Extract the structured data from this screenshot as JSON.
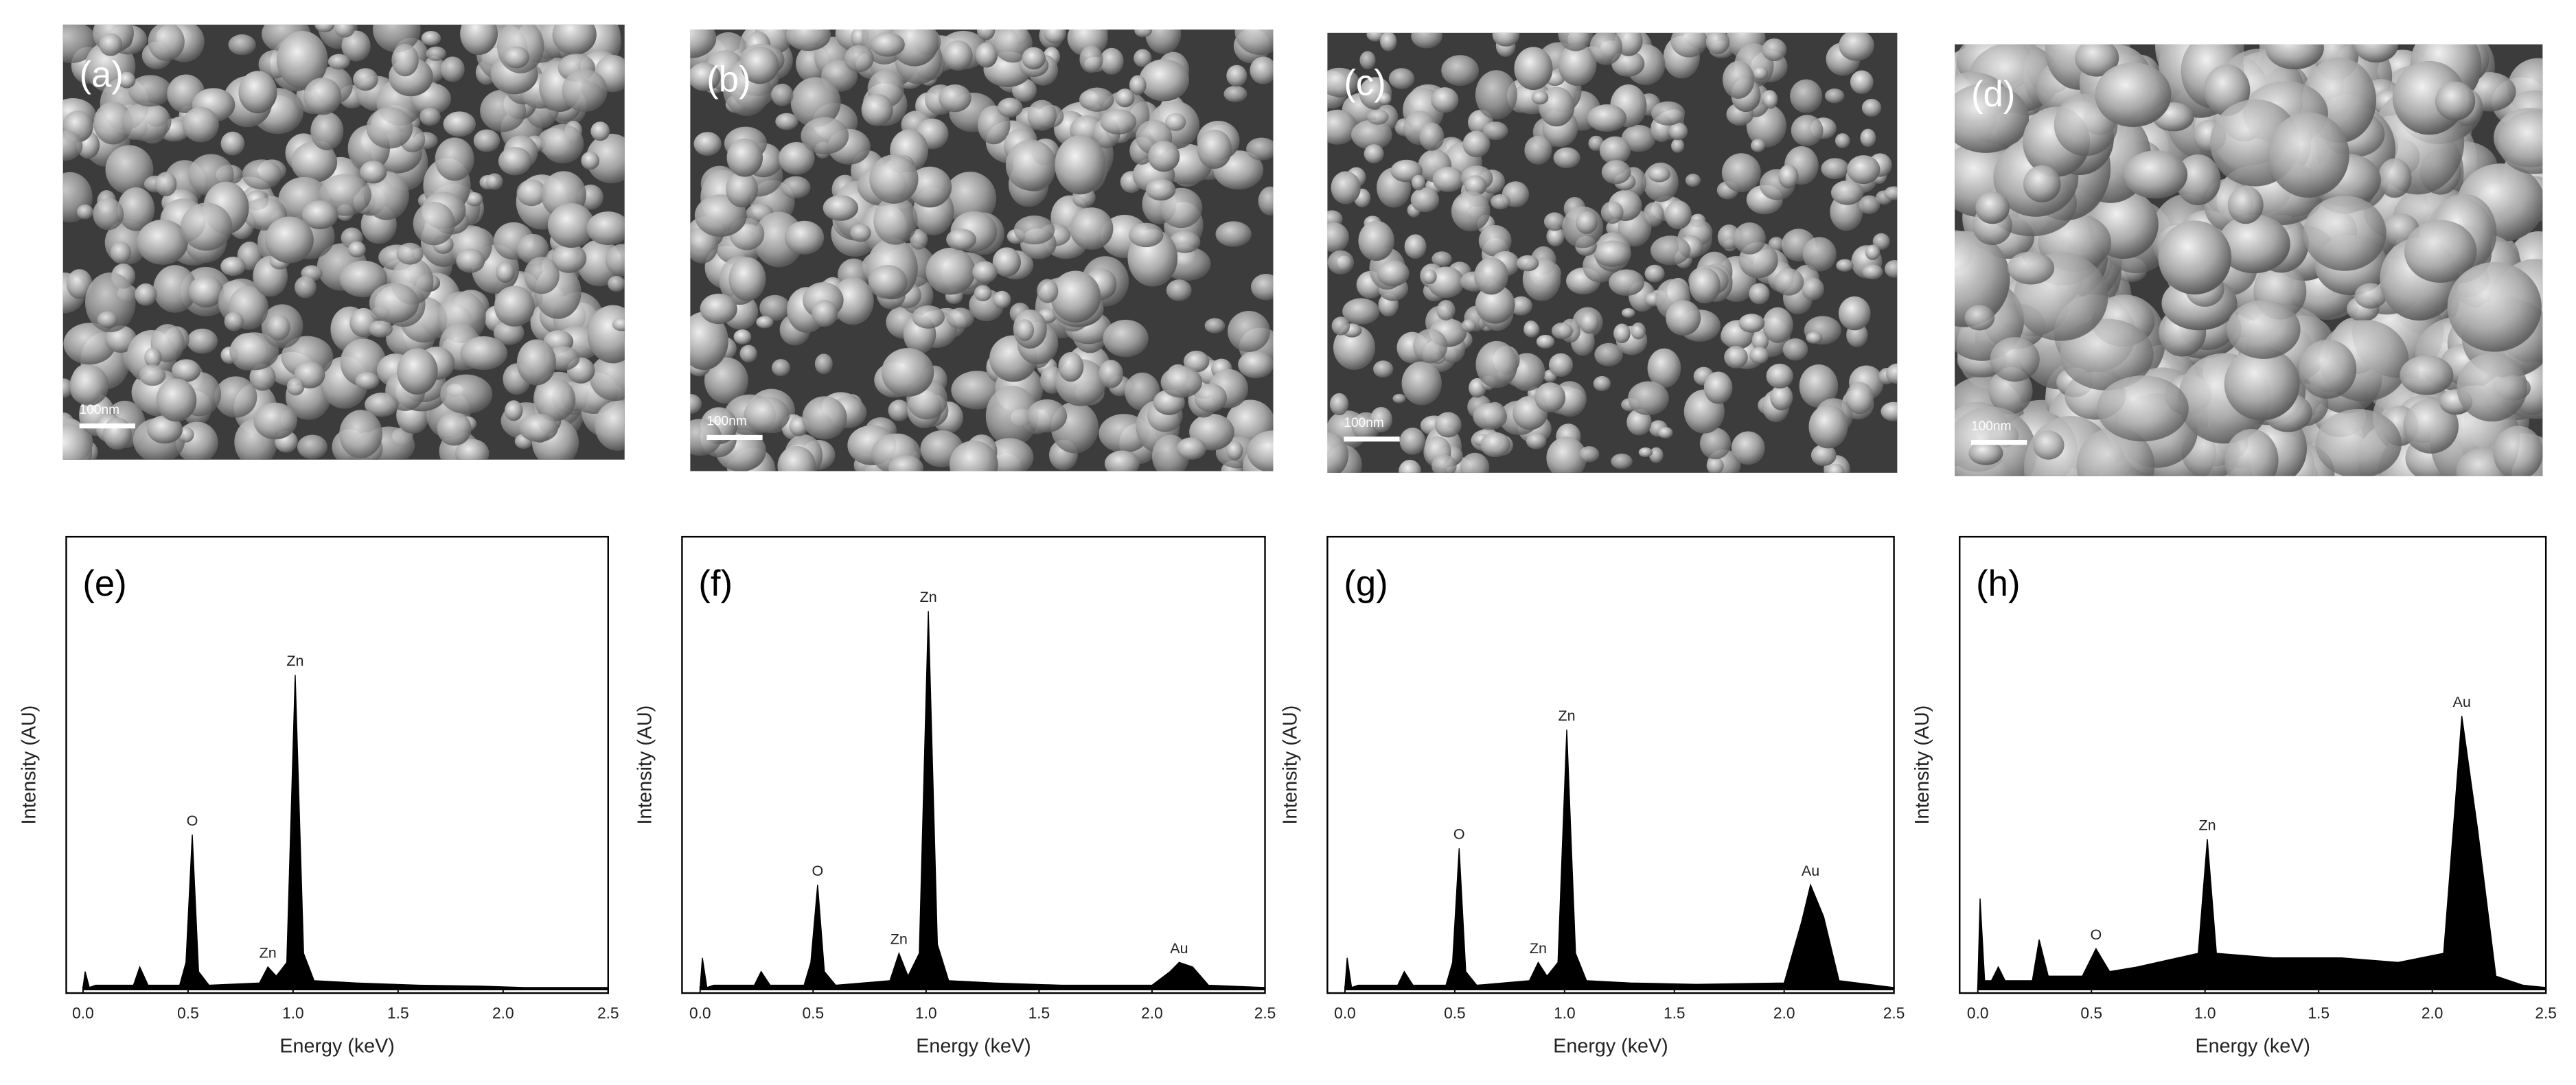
{
  "sem_images": [
    {
      "label": "(a)",
      "scale_bar": "100nm"
    },
    {
      "label": "(b)",
      "scale_bar": "100nm"
    },
    {
      "label": "(c)",
      "scale_bar": "100nm"
    },
    {
      "label": "(d)",
      "scale_bar": "100nm"
    }
  ],
  "chart_data": [
    {
      "type": "area",
      "panel_label": "(e)",
      "xlabel": "Energy (keV)",
      "ylabel": "Intensity (AU)",
      "color": "#000000",
      "xlim": [
        -0.08,
        2.5
      ],
      "ylim": [
        0,
        100
      ],
      "xticks": [
        {
          "value": 0,
          "label": "0.0"
        },
        0.5,
        {
          "value": 1,
          "label": "1.0"
        },
        1.5,
        {
          "value": 2,
          "label": "2.0"
        },
        2.5
      ],
      "x": [
        0,
        0.01,
        0.03,
        0.06,
        0.24,
        0.27,
        0.31,
        0.46,
        0.49,
        0.52,
        0.55,
        0.6,
        0.84,
        0.88,
        0.92,
        0.97,
        1.01,
        1.05,
        1.1,
        1.3,
        1.6,
        1.9,
        2.1,
        2.5
      ],
      "values": [
        0.5,
        4,
        0.5,
        1,
        1,
        5,
        1,
        1,
        6,
        34,
        4,
        1,
        1.5,
        5,
        3,
        6,
        69,
        8,
        2,
        1.5,
        1,
        0.8,
        0.5,
        0.5
      ],
      "annotations": [
        {
          "text": "O",
          "x": 0.52
        },
        {
          "text": "Zn",
          "x": 0.88
        },
        {
          "text": "Zn",
          "x": 1.01
        }
      ]
    },
    {
      "type": "area",
      "panel_label": "(f)",
      "xlabel": "Energy (keV)",
      "ylabel": "Intensity (AU)",
      "color": "#000000",
      "xlim": [
        -0.08,
        2.5
      ],
      "ylim": [
        0,
        100
      ],
      "xticks": [
        {
          "value": 0,
          "label": "0.0"
        },
        0.5,
        {
          "value": 1,
          "label": "1.0"
        },
        1.5,
        {
          "value": 2,
          "label": "2.0"
        },
        2.5
      ],
      "x": [
        0,
        0.01,
        0.03,
        0.06,
        0.24,
        0.27,
        0.31,
        0.46,
        0.49,
        0.52,
        0.55,
        0.6,
        0.84,
        0.88,
        0.92,
        0.97,
        1.01,
        1.05,
        1.1,
        1.3,
        1.6,
        2.0,
        2.08,
        2.12,
        2.18,
        2.25,
        2.5
      ],
      "values": [
        0.5,
        7,
        0.5,
        1,
        1,
        4,
        1,
        1,
        6,
        23,
        4,
        1,
        2,
        8,
        3,
        8,
        83,
        10,
        2,
        1.5,
        1,
        1,
        4,
        6,
        5,
        1,
        0.5
      ],
      "annotations": [
        {
          "text": "O",
          "x": 0.52
        },
        {
          "text": "Zn",
          "x": 0.88
        },
        {
          "text": "Zn",
          "x": 1.01
        },
        {
          "text": "Au",
          "x": 2.12
        }
      ]
    },
    {
      "type": "area",
      "panel_label": "(g)",
      "xlabel": "Energy (keV)",
      "ylabel": "Intensity (AU)",
      "color": "#000000",
      "xlim": [
        -0.08,
        2.5
      ],
      "ylim": [
        0,
        100
      ],
      "xticks": [
        {
          "value": 0,
          "label": "0.0"
        },
        0.5,
        {
          "value": 1,
          "label": "1.0"
        },
        1.5,
        {
          "value": 2,
          "label": "2.0"
        },
        2.5
      ],
      "x": [
        0,
        0.01,
        0.03,
        0.06,
        0.24,
        0.27,
        0.31,
        0.46,
        0.49,
        0.52,
        0.55,
        0.6,
        0.84,
        0.88,
        0.92,
        0.97,
        1.01,
        1.05,
        1.1,
        1.3,
        1.6,
        2.0,
        2.08,
        2.12,
        2.18,
        2.25,
        2.5
      ],
      "values": [
        0.5,
        7,
        0.5,
        1,
        1,
        4,
        1,
        1,
        6,
        31,
        4,
        1,
        2,
        6,
        3,
        6,
        57,
        8,
        2,
        1.5,
        1.2,
        1.5,
        15,
        23,
        16,
        2,
        0.5
      ],
      "annotations": [
        {
          "text": "O",
          "x": 0.52
        },
        {
          "text": "Zn",
          "x": 0.88
        },
        {
          "text": "Zn",
          "x": 1.01
        },
        {
          "text": "Au",
          "x": 2.12
        }
      ]
    },
    {
      "type": "area",
      "panel_label": "(h)",
      "xlabel": "Energy (keV)",
      "ylabel": "Intensity (AU)",
      "color": "#000000",
      "xlim": [
        -0.08,
        2.5
      ],
      "ylim": [
        0,
        100
      ],
      "xticks": [
        {
          "value": 0,
          "label": "0.0"
        },
        0.5,
        {
          "value": 1,
          "label": "1.0"
        },
        1.5,
        {
          "value": 2,
          "label": "2.0"
        },
        2.5
      ],
      "x": [
        0,
        0.01,
        0.03,
        0.06,
        0.09,
        0.12,
        0.24,
        0.27,
        0.31,
        0.46,
        0.52,
        0.58,
        0.7,
        0.97,
        1.01,
        1.05,
        1.3,
        1.6,
        1.85,
        2.05,
        2.1,
        2.13,
        2.2,
        2.28,
        2.4,
        2.5
      ],
      "values": [
        1,
        20,
        2,
        2,
        5,
        2,
        2,
        11,
        3,
        3,
        9,
        4,
        5,
        8,
        33,
        8,
        7,
        7,
        6,
        8,
        40,
        60,
        35,
        3,
        1,
        0.5
      ],
      "annotations": [
        {
          "text": "Zn",
          "x": 1.01
        },
        {
          "text": "O",
          "x": 0.52
        },
        {
          "text": "Au",
          "x": 2.13
        }
      ]
    }
  ]
}
